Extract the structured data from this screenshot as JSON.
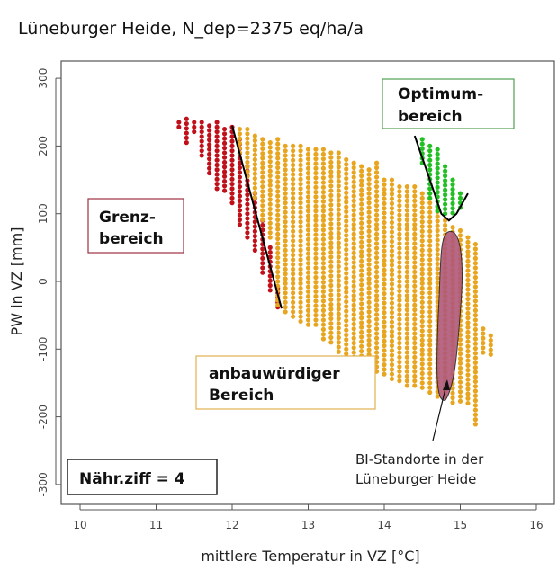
{
  "chart_data": {
    "type": "scatter",
    "title": "Lüneburger Heide, N_dep=2375 eq/ha/a",
    "xlabel": "mittlere Temperatur in VZ [°C]",
    "ylabel": "PW in VZ [mm]",
    "xlim": [
      9.75,
      16.3
    ],
    "ylim": [
      -330,
      325
    ],
    "xticks": [
      "10",
      "11",
      "12",
      "13",
      "14",
      "15",
      "16"
    ],
    "yticks": [
      "300",
      "200",
      "100",
      "0",
      "-100",
      "-200",
      "-300"
    ],
    "grid": false,
    "colors": {
      "grenz": "#c0101a",
      "anbau": "#e8a520",
      "optimum": "#22c022",
      "bi": "#b05878",
      "line": "#000000"
    },
    "series": [
      {
        "region": "Grenzbereich",
        "columns": [
          [
            11.3,
            225,
            235
          ],
          [
            11.4,
            200,
            240
          ],
          [
            11.5,
            215,
            235
          ],
          [
            11.6,
            185,
            235
          ],
          [
            11.7,
            155,
            230
          ],
          [
            11.8,
            135,
            235
          ],
          [
            11.9,
            130,
            225
          ],
          [
            12.0,
            115,
            228
          ],
          [
            12.1,
            80,
            210
          ],
          [
            12.2,
            60,
            170
          ],
          [
            12.3,
            40,
            130
          ],
          [
            12.4,
            10,
            90
          ],
          [
            12.5,
            -15,
            50
          ],
          [
            12.6,
            -40,
            -10
          ]
        ]
      },
      {
        "region": "anbauwürdiger Bereich",
        "columns": [
          [
            12.1,
            190,
            225
          ],
          [
            12.2,
            150,
            225
          ],
          [
            12.3,
            120,
            215
          ],
          [
            12.4,
            90,
            210
          ],
          [
            12.5,
            60,
            205
          ],
          [
            12.6,
            -40,
            210
          ],
          [
            12.7,
            -50,
            200
          ],
          [
            12.8,
            -55,
            200
          ],
          [
            12.9,
            -60,
            200
          ],
          [
            13.0,
            -65,
            195
          ],
          [
            13.1,
            -70,
            195
          ],
          [
            13.2,
            -90,
            195
          ],
          [
            13.3,
            -95,
            190
          ],
          [
            13.4,
            -105,
            190
          ],
          [
            13.5,
            -115,
            180
          ],
          [
            13.6,
            -120,
            175
          ],
          [
            13.7,
            -125,
            170
          ],
          [
            13.8,
            -130,
            165
          ],
          [
            13.9,
            -135,
            175
          ],
          [
            14.0,
            -140,
            150
          ],
          [
            14.1,
            -145,
            150
          ],
          [
            14.2,
            -150,
            140
          ],
          [
            14.3,
            -155,
            140
          ],
          [
            14.4,
            -160,
            140
          ],
          [
            14.5,
            -160,
            130
          ],
          [
            14.6,
            -165,
            130
          ],
          [
            14.7,
            -170,
            110
          ],
          [
            14.8,
            -175,
            90
          ],
          [
            14.9,
            -180,
            80
          ],
          [
            15.0,
            -180,
            75
          ],
          [
            15.1,
            -185,
            65
          ],
          [
            15.2,
            -215,
            55
          ],
          [
            15.3,
            -110,
            -70
          ],
          [
            15.4,
            -110,
            -80
          ]
        ]
      },
      {
        "region": "Optimumbereich",
        "columns": [
          [
            14.5,
            170,
            210
          ],
          [
            14.6,
            120,
            200
          ],
          [
            14.7,
            100,
            195
          ],
          [
            14.8,
            95,
            170
          ],
          [
            14.9,
            100,
            150
          ],
          [
            15.0,
            105,
            130
          ]
        ]
      }
    ],
    "boundary_lines": [
      {
        "points": [
          [
            12.0,
            230
          ],
          [
            12.65,
            -40
          ]
        ]
      },
      {
        "points": [
          [
            14.4,
            215
          ],
          [
            14.6,
            150
          ],
          [
            14.75,
            100
          ],
          [
            14.85,
            90
          ],
          [
            14.95,
            100
          ],
          [
            15.1,
            130
          ]
        ]
      }
    ],
    "annotations": {
      "grenz": [
        "Grenz-",
        "bereich"
      ],
      "optimum": [
        "Optimum-",
        "bereich"
      ],
      "anbau": [
        "anbauwürdiger",
        "Bereich"
      ],
      "naehr": "Nähr.ziff = 4",
      "bi": [
        "BI-Standorte in der",
        "Lüneburger Heide"
      ]
    }
  }
}
